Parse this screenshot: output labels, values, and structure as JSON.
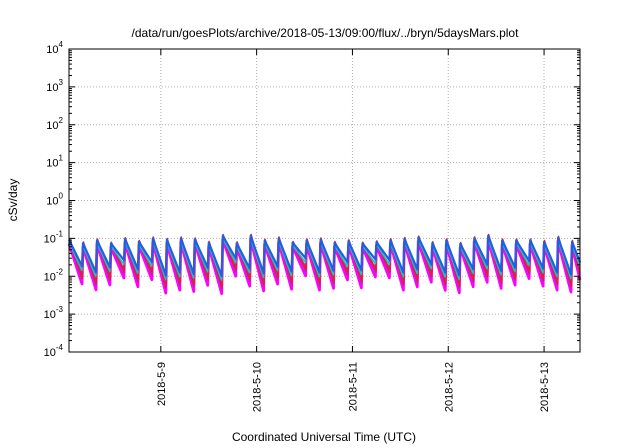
{
  "chart_data": {
    "type": "line",
    "title": "/data/run/goesPlots/archive/2018-05-13/09:00/flux/../bryn/5daysMars.plot",
    "xlabel": "Coordinated Universal Time (UTC)",
    "ylabel": "cSv/day",
    "xlim": [
      "2018-05-08T01:00",
      "2018-05-13T09:00"
    ],
    "ylim": [
      0.0001,
      10000
    ],
    "yscale": "log",
    "grid": true,
    "x_ticks": [
      "2018-5-9",
      "2018-5-10",
      "2018-5-11",
      "2018-5-12",
      "2018-5-13"
    ],
    "y_ticks": [
      {
        "base": "10",
        "exp": "-4"
      },
      {
        "base": "10",
        "exp": "-3"
      },
      {
        "base": "10",
        "exp": "-2"
      },
      {
        "base": "10",
        "exp": "-1"
      },
      {
        "base": "10",
        "exp": "0"
      },
      {
        "base": "10",
        "exp": "1"
      },
      {
        "base": "10",
        "exp": "2"
      },
      {
        "base": "10",
        "exp": "3"
      },
      {
        "base": "10",
        "exp": "4"
      }
    ],
    "pattern": {
      "cycle_hours": 3.5,
      "peak_value_range": [
        0.07,
        0.12
      ],
      "trough_value_range": [
        0.003,
        0.03
      ]
    },
    "series_colors": [
      "#ff00ff",
      "#b0306a",
      "#e02040",
      "#20c0c0",
      "#2060e0"
    ]
  }
}
